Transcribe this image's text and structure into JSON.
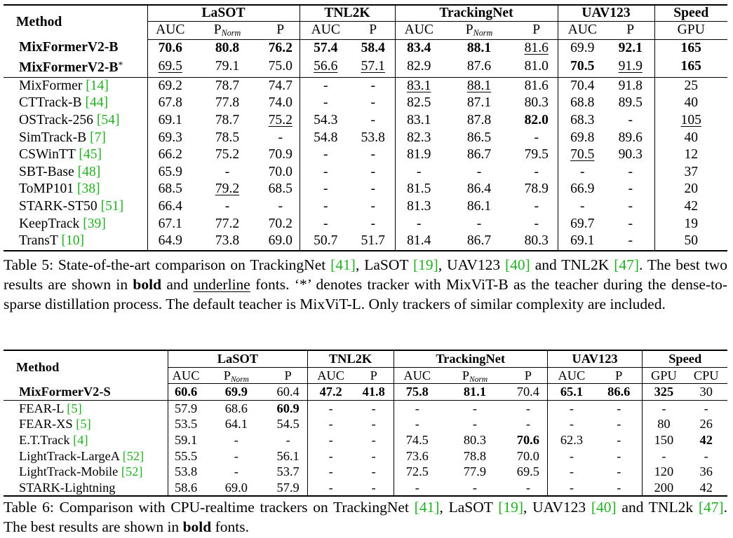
{
  "table5": {
    "headers": {
      "method": "Method",
      "lasot": "LaSOT",
      "tnl2k": "TNL2K",
      "trackingnet": "TrackingNet",
      "uav123": "UAV123",
      "speed": "Speed",
      "auc": "AUC",
      "p": "P",
      "pnorm_base": "P",
      "pnorm_sub": "Norm",
      "gpu": "GPU"
    },
    "rows": [
      {
        "method": "MixFormerV2-B",
        "ref": "",
        "star": "",
        "bold_method": true,
        "cells": [
          [
            "70.6",
            "b"
          ],
          [
            "80.8",
            "b"
          ],
          [
            "76.2",
            "b"
          ],
          [
            "57.4",
            "b"
          ],
          [
            "58.4",
            "b"
          ],
          [
            "83.4",
            "b"
          ],
          [
            "88.1",
            "b"
          ],
          [
            "81.6",
            "u"
          ],
          [
            "69.9",
            ""
          ],
          [
            "92.1",
            "b"
          ],
          [
            "165",
            "b"
          ]
        ]
      },
      {
        "method": "MixFormerV2-B",
        "ref": "",
        "star": "*",
        "bold_method": true,
        "cells": [
          [
            "69.5",
            "u"
          ],
          [
            "79.1",
            ""
          ],
          [
            "75.0",
            ""
          ],
          [
            "56.6",
            "u"
          ],
          [
            "57.1",
            "u"
          ],
          [
            "82.9",
            ""
          ],
          [
            "87.6",
            ""
          ],
          [
            "81.0",
            ""
          ],
          [
            "70.5",
            "b"
          ],
          [
            "91.9",
            "u"
          ],
          [
            "165",
            "b"
          ]
        ]
      },
      {
        "method": "MixFormer ",
        "ref": "[14]",
        "star": "",
        "bold_method": false,
        "cells": [
          [
            "69.2",
            ""
          ],
          [
            "78.7",
            ""
          ],
          [
            "74.7",
            ""
          ],
          [
            "-",
            ""
          ],
          [
            "-",
            ""
          ],
          [
            "83.1",
            "u"
          ],
          [
            "88.1",
            "u"
          ],
          [
            "81.6",
            ""
          ],
          [
            "70.4",
            ""
          ],
          [
            "91.8",
            ""
          ],
          [
            "25",
            ""
          ]
        ]
      },
      {
        "method": "CTTrack-B ",
        "ref": "[44]",
        "star": "",
        "bold_method": false,
        "cells": [
          [
            "67.8",
            ""
          ],
          [
            "77.8",
            ""
          ],
          [
            "74.0",
            ""
          ],
          [
            "-",
            ""
          ],
          [
            "-",
            ""
          ],
          [
            "82.5",
            ""
          ],
          [
            "87.1",
            ""
          ],
          [
            "80.3",
            ""
          ],
          [
            "68.8",
            ""
          ],
          [
            "89.5",
            ""
          ],
          [
            "40",
            ""
          ]
        ]
      },
      {
        "method": "OSTrack-256 ",
        "ref": "[54]",
        "star": "",
        "bold_method": false,
        "cells": [
          [
            "69.1",
            ""
          ],
          [
            "78.7",
            ""
          ],
          [
            "75.2",
            "u"
          ],
          [
            "54.3",
            ""
          ],
          [
            "-",
            ""
          ],
          [
            "83.1",
            ""
          ],
          [
            "87.8",
            ""
          ],
          [
            "82.0",
            "b"
          ],
          [
            "68.3",
            ""
          ],
          [
            "-",
            ""
          ],
          [
            "105",
            "u"
          ]
        ]
      },
      {
        "method": "SimTrack-B ",
        "ref": "[7]",
        "star": "",
        "bold_method": false,
        "cells": [
          [
            "69.3",
            ""
          ],
          [
            "78.5",
            ""
          ],
          [
            "-",
            ""
          ],
          [
            "54.8",
            ""
          ],
          [
            "53.8",
            ""
          ],
          [
            "82.3",
            ""
          ],
          [
            "86.5",
            ""
          ],
          [
            "-",
            ""
          ],
          [
            "69.8",
            ""
          ],
          [
            "89.6",
            ""
          ],
          [
            "40",
            ""
          ]
        ]
      },
      {
        "method": "CSWinTT ",
        "ref": "[45]",
        "star": "",
        "bold_method": false,
        "cells": [
          [
            "66.2",
            ""
          ],
          [
            "75.2",
            ""
          ],
          [
            "70.9",
            ""
          ],
          [
            "-",
            ""
          ],
          [
            "-",
            ""
          ],
          [
            "81.9",
            ""
          ],
          [
            "86.7",
            ""
          ],
          [
            "79.5",
            ""
          ],
          [
            "70.5",
            "u"
          ],
          [
            "90.3",
            ""
          ],
          [
            "12",
            ""
          ]
        ]
      },
      {
        "method": "SBT-Base ",
        "ref": "[48]",
        "star": "",
        "bold_method": false,
        "cells": [
          [
            "65.9",
            ""
          ],
          [
            "-",
            ""
          ],
          [
            "70.0",
            ""
          ],
          [
            "-",
            ""
          ],
          [
            "-",
            ""
          ],
          [
            "-",
            ""
          ],
          [
            "-",
            ""
          ],
          [
            "-",
            ""
          ],
          [
            "-",
            ""
          ],
          [
            "-",
            ""
          ],
          [
            "37",
            ""
          ]
        ]
      },
      {
        "method": "ToMP101 ",
        "ref": "[38]",
        "star": "",
        "bold_method": false,
        "cells": [
          [
            "68.5",
            ""
          ],
          [
            "79.2",
            "u"
          ],
          [
            "68.5",
            ""
          ],
          [
            "-",
            ""
          ],
          [
            "-",
            ""
          ],
          [
            "81.5",
            ""
          ],
          [
            "86.4",
            ""
          ],
          [
            "78.9",
            ""
          ],
          [
            "66.9",
            ""
          ],
          [
            "-",
            ""
          ],
          [
            "20",
            ""
          ]
        ]
      },
      {
        "method": "STARK-ST50 ",
        "ref": "[51]",
        "star": "",
        "bold_method": false,
        "cells": [
          [
            "66.4",
            ""
          ],
          [
            "-",
            ""
          ],
          [
            "-",
            ""
          ],
          [
            "-",
            ""
          ],
          [
            "-",
            ""
          ],
          [
            "81.3",
            ""
          ],
          [
            "86.1",
            ""
          ],
          [
            "-",
            ""
          ],
          [
            "-",
            ""
          ],
          [
            "-",
            ""
          ],
          [
            "42",
            ""
          ]
        ]
      },
      {
        "method": "KeepTrack ",
        "ref": "[39]",
        "star": "",
        "bold_method": false,
        "cells": [
          [
            "67.1",
            ""
          ],
          [
            "77.2",
            ""
          ],
          [
            "70.2",
            ""
          ],
          [
            "-",
            ""
          ],
          [
            "-",
            ""
          ],
          [
            "-",
            ""
          ],
          [
            "-",
            ""
          ],
          [
            "-",
            ""
          ],
          [
            "69.7",
            ""
          ],
          [
            "-",
            ""
          ],
          [
            "19",
            ""
          ]
        ]
      },
      {
        "method": "TransT ",
        "ref": "[10]",
        "star": "",
        "bold_method": false,
        "cells": [
          [
            "64.9",
            ""
          ],
          [
            "73.8",
            ""
          ],
          [
            "69.0",
            ""
          ],
          [
            "50.7",
            ""
          ],
          [
            "51.7",
            ""
          ],
          [
            "81.4",
            ""
          ],
          [
            "86.7",
            ""
          ],
          [
            "80.3",
            ""
          ],
          [
            "69.1",
            ""
          ],
          [
            "-",
            ""
          ],
          [
            "50",
            ""
          ]
        ]
      }
    ],
    "caption": {
      "p1": "Table 5:  State-of-the-art comparison on TrackingNet ",
      "r1": "[41]",
      "p2": ", LaSOT ",
      "r2": "[19]",
      "p3": ", UAV123 ",
      "r3": "[40]",
      "p4": " and TNL2K ",
      "r4": "[47]",
      "p5": ".  The best two results are shown in ",
      "bold": "bold",
      "p6": " and ",
      "underline": "underline",
      "p7": " fonts.  ‘*’ denotes tracker with MixViT-B as the teacher during the dense-to-sparse distillation process. The default teacher is MixViT-L. Only trackers of similar complexity are included."
    }
  },
  "table6": {
    "headers": {
      "method": "Method",
      "lasot": "LaSOT",
      "tnl2k": "TNL2K",
      "trackingnet": "TrackingNet",
      "uav123": "UAV123",
      "speed": "Speed",
      "auc": "AUC",
      "p": "P",
      "pnorm_base": "P",
      "pnorm_sub": "Norm",
      "gpu": "GPU",
      "cpu": "CPU"
    },
    "rows": [
      {
        "method": "MixFormerV2-S",
        "ref": "",
        "bold_method": true,
        "cells": [
          [
            "60.6",
            "b"
          ],
          [
            "69.9",
            "b"
          ],
          [
            "60.4",
            ""
          ],
          [
            "47.2",
            "b"
          ],
          [
            "41.8",
            "b"
          ],
          [
            "75.8",
            "b"
          ],
          [
            "81.1",
            "b"
          ],
          [
            "70.4",
            ""
          ],
          [
            "65.1",
            "b"
          ],
          [
            "86.6",
            "b"
          ],
          [
            "325",
            "b"
          ],
          [
            "30",
            ""
          ]
        ]
      },
      {
        "method": "FEAR-L ",
        "ref": "[5]",
        "bold_method": false,
        "cells": [
          [
            "57.9",
            ""
          ],
          [
            "68.6",
            ""
          ],
          [
            "60.9",
            "b"
          ],
          [
            "-",
            ""
          ],
          [
            "-",
            ""
          ],
          [
            "-",
            ""
          ],
          [
            "-",
            ""
          ],
          [
            "-",
            ""
          ],
          [
            "-",
            ""
          ],
          [
            "-",
            ""
          ],
          [
            "-",
            ""
          ],
          [
            "-",
            ""
          ]
        ]
      },
      {
        "method": "FEAR-XS ",
        "ref": "[5]",
        "bold_method": false,
        "cells": [
          [
            "53.5",
            ""
          ],
          [
            "64.1",
            ""
          ],
          [
            "54.5",
            ""
          ],
          [
            "-",
            ""
          ],
          [
            "-",
            ""
          ],
          [
            "-",
            ""
          ],
          [
            "-",
            ""
          ],
          [
            "-",
            ""
          ],
          [
            "-",
            ""
          ],
          [
            "-",
            ""
          ],
          [
            "80",
            ""
          ],
          [
            "26",
            ""
          ]
        ]
      },
      {
        "method": "E.T.Track ",
        "ref": "[4]",
        "bold_method": false,
        "cells": [
          [
            "59.1",
            ""
          ],
          [
            "-",
            ""
          ],
          [
            "-",
            ""
          ],
          [
            "-",
            ""
          ],
          [
            "-",
            ""
          ],
          [
            "74.5",
            ""
          ],
          [
            "80.3",
            ""
          ],
          [
            "70.6",
            "b"
          ],
          [
            "62.3",
            ""
          ],
          [
            "-",
            ""
          ],
          [
            "150",
            ""
          ],
          [
            "42",
            "b"
          ]
        ]
      },
      {
        "method": "LightTrack-LargeA ",
        "ref": "[52]",
        "bold_method": false,
        "cells": [
          [
            "55.5",
            ""
          ],
          [
            "-",
            ""
          ],
          [
            "56.1",
            ""
          ],
          [
            "-",
            ""
          ],
          [
            "-",
            ""
          ],
          [
            "73.6",
            ""
          ],
          [
            "78.8",
            ""
          ],
          [
            "70.0",
            ""
          ],
          [
            "-",
            ""
          ],
          [
            "-",
            ""
          ],
          [
            "-",
            ""
          ],
          [
            "-",
            ""
          ]
        ]
      },
      {
        "method": "LightTrack-Mobile ",
        "ref": "[52]",
        "bold_method": false,
        "cells": [
          [
            "53.8",
            ""
          ],
          [
            "-",
            ""
          ],
          [
            "53.7",
            ""
          ],
          [
            "-",
            ""
          ],
          [
            "-",
            ""
          ],
          [
            "72.5",
            ""
          ],
          [
            "77.9",
            ""
          ],
          [
            "69.5",
            ""
          ],
          [
            "-",
            ""
          ],
          [
            "-",
            ""
          ],
          [
            "120",
            ""
          ],
          [
            "36",
            ""
          ]
        ]
      },
      {
        "method": "STARK-Lightning",
        "ref": "",
        "bold_method": false,
        "cells": [
          [
            "58.6",
            ""
          ],
          [
            "69.0",
            ""
          ],
          [
            "57.9",
            ""
          ],
          [
            "-",
            ""
          ],
          [
            "-",
            ""
          ],
          [
            "-",
            ""
          ],
          [
            "-",
            ""
          ],
          [
            "-",
            ""
          ],
          [
            "-",
            ""
          ],
          [
            "-",
            ""
          ],
          [
            "200",
            ""
          ],
          [
            "42",
            ""
          ]
        ]
      }
    ],
    "caption": {
      "p1": "Table 6: Comparison with CPU-realtime trackers on TrackingNet ",
      "r1": "[41]",
      "p2": ", LaSOT ",
      "r2": "[19]",
      "p3": ", UAV123 ",
      "r3": "[40]",
      "p4": " and TNL2k ",
      "r4": "[47]",
      "p5": ". The best results are shown in ",
      "bold": "bold",
      "p6": " fonts."
    }
  },
  "colors": {
    "reference_link": "#22b022",
    "text": "#000000"
  }
}
